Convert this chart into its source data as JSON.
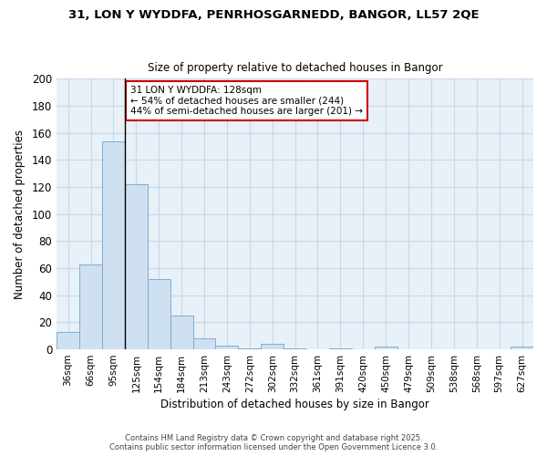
{
  "title1": "31, LON Y WYDDFA, PENRHOSGARNEDD, BANGOR, LL57 2QE",
  "title2": "Size of property relative to detached houses in Bangor",
  "xlabel": "Distribution of detached houses by size in Bangor",
  "ylabel": "Number of detached properties",
  "categories": [
    "36sqm",
    "66sqm",
    "95sqm",
    "125sqm",
    "154sqm",
    "184sqm",
    "213sqm",
    "243sqm",
    "272sqm",
    "302sqm",
    "332sqm",
    "361sqm",
    "391sqm",
    "420sqm",
    "450sqm",
    "479sqm",
    "509sqm",
    "538sqm",
    "568sqm",
    "597sqm",
    "627sqm"
  ],
  "bar_heights": [
    13,
    63,
    154,
    122,
    52,
    25,
    8,
    3,
    1,
    4,
    1,
    0,
    1,
    0,
    2,
    0,
    0,
    0,
    0,
    0,
    2
  ],
  "bar_color": "#cfe0f0",
  "bar_edge_color": "#7aafd4",
  "vline_x": 2.5,
  "vline_color": "#000000",
  "annotation_line1": "31 LON Y WYDDFA: 128sqm",
  "annotation_line2": "← 54% of detached houses are smaller (244)",
  "annotation_line3": "44% of semi-detached houses are larger (201) →",
  "annotation_border_color": "#cc0000",
  "ylim": [
    0,
    200
  ],
  "yticks": [
    0,
    20,
    40,
    60,
    80,
    100,
    120,
    140,
    160,
    180,
    200
  ],
  "background_color": "#ffffff",
  "plot_bg_color": "#e8f0f8",
  "grid_color": "#c8d8e8",
  "footer_line1": "Contains HM Land Registry data © Crown copyright and database right 2025.",
  "footer_line2": "Contains public sector information licensed under the Open Government Licence 3.0."
}
